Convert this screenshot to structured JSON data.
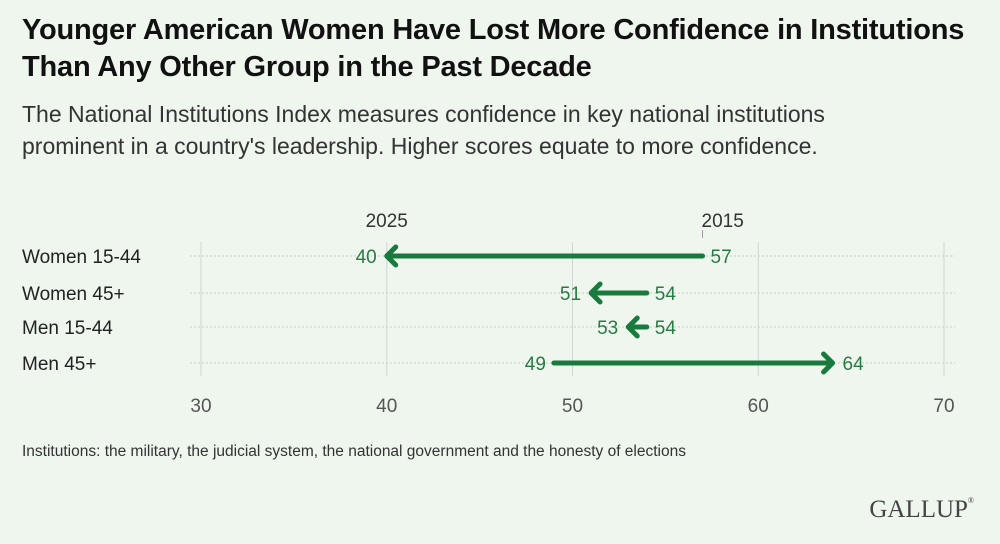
{
  "title": "Younger American Women Have Lost More Confidence in Institutions Than Any Other Group in the Past Decade",
  "subtitle": "The National Institutions Index measures confidence in key national institutions prominent in a country's leadership. Higher scores equate to more confidence.",
  "footnote": "Institutions: the military, the judicial system, the national government and the honesty of elections",
  "logo": "GALLUP",
  "colors": {
    "accent": "#1a7a3e",
    "label": "#2a7a45",
    "background": "#eef6ee",
    "gridline": "#cfd6cf"
  },
  "chart_data": {
    "type": "arrow-dumbbell",
    "title": "Younger American Women Have Lost More Confidence in Institutions Than Any Other Group in the Past Decade",
    "xlabel": "",
    "ylabel": "",
    "xlim": [
      30,
      70
    ],
    "xticks": [
      30,
      40,
      50,
      60,
      70
    ],
    "grid": true,
    "legend": {
      "start_label": "2015",
      "end_label": "2025",
      "placement": "top"
    },
    "categories": [
      "Women 15-44",
      "Women 45+",
      "Men 15-44",
      "Men 45+"
    ],
    "series": [
      {
        "name": "2015",
        "values": [
          57,
          54,
          54,
          49
        ]
      },
      {
        "name": "2025",
        "values": [
          40,
          51,
          53,
          64
        ]
      }
    ]
  }
}
